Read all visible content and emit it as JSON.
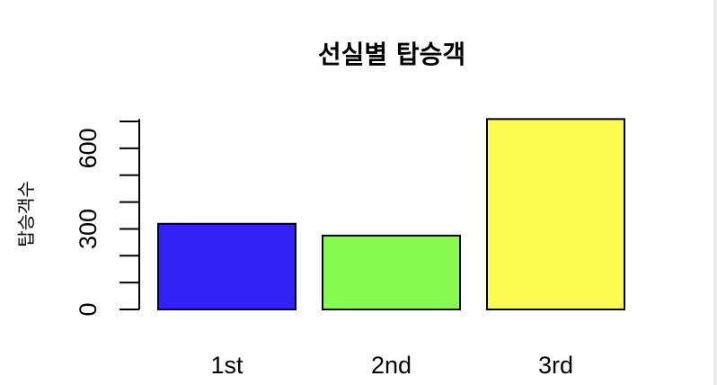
{
  "chart_data": {
    "type": "bar",
    "title": "선실별 탑승객",
    "xlabel": "",
    "ylabel": "탑승객수",
    "categories": [
      "1st",
      "2nd",
      "3rd"
    ],
    "values": [
      319,
      275,
      709
    ],
    "colors": [
      "#3322f5",
      "#88fa50",
      "#fbfb52"
    ],
    "ylim": [
      0,
      709
    ],
    "yticks_labeled": [
      0,
      300,
      600
    ],
    "yticks_minor": [
      100,
      200,
      400,
      500,
      700
    ],
    "grid": false,
    "legend": "none"
  }
}
